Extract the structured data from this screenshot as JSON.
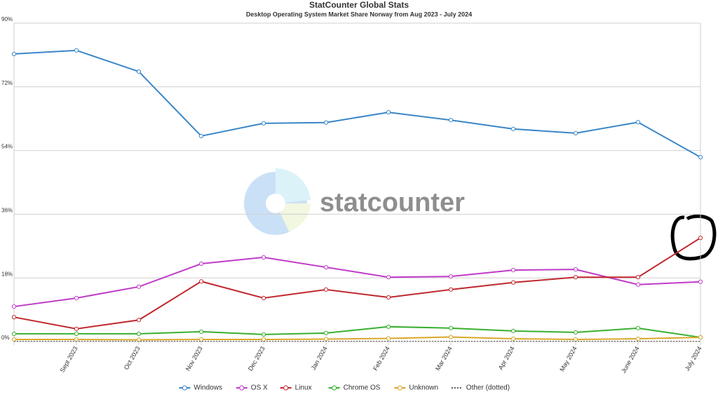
{
  "chart_data": {
    "type": "line",
    "title": "StatCounter Global Stats",
    "subtitle": "Desktop Operating System Market Share Norway from Aug 2023 - July 2024",
    "watermark": "statcounter",
    "categories": [
      null,
      "Sept 2023",
      "Oct 2023",
      "Nov 2023",
      "Dec 2023",
      "Jan 2024",
      "Feb 2024",
      "Mar 2024",
      "Apr 2024",
      "May 2024",
      "June 2024",
      "July 2024"
    ],
    "ylim": [
      0,
      90
    ],
    "yticks": [
      {
        "value": 0,
        "label": "0%"
      },
      {
        "value": 18,
        "label": "18%"
      },
      {
        "value": 36,
        "label": "36%"
      },
      {
        "value": 54,
        "label": "54%"
      },
      {
        "value": 72,
        "label": "72%"
      },
      {
        "value": 90,
        "label": "90%"
      }
    ],
    "grid": true,
    "legend": "bottom",
    "series": [
      {
        "name": "Windows",
        "color": "#3a86c8",
        "values": [
          81.3,
          82.3,
          76.3,
          58.1,
          61.7,
          61.9,
          64.8,
          62.6,
          60.1,
          58.9,
          62.0,
          52.1
        ]
      },
      {
        "name": "OS X",
        "color": "#c03bc8",
        "values": [
          9.9,
          12.3,
          15.5,
          22.0,
          23.8,
          21.0,
          18.2,
          18.4,
          20.2,
          20.4,
          16.1,
          16.9
        ]
      },
      {
        "name": "Linux",
        "color": "#c0282d",
        "values": [
          6.9,
          3.6,
          6.1,
          17.0,
          12.3,
          14.7,
          12.5,
          14.7,
          16.7,
          18.2,
          18.2,
          29.3
        ]
      },
      {
        "name": "Chrome OS",
        "color": "#38b02e",
        "values": [
          2.2,
          2.2,
          2.2,
          2.8,
          2.0,
          2.4,
          4.2,
          3.8,
          3.0,
          2.6,
          3.8,
          1.2
        ]
      },
      {
        "name": "Unknown",
        "color": "#d9a72a",
        "values": [
          0.6,
          0.6,
          0.5,
          0.6,
          0.6,
          0.7,
          0.9,
          1.3,
          0.8,
          0.6,
          0.8,
          1.2
        ]
      },
      {
        "name": "Other (dotted)",
        "color": "#555555",
        "dotted": true,
        "values": [
          0.1,
          0.1,
          0.1,
          0.1,
          0.1,
          0.1,
          0.1,
          0.1,
          0.1,
          0.1,
          0.1,
          0.1
        ]
      }
    ]
  }
}
